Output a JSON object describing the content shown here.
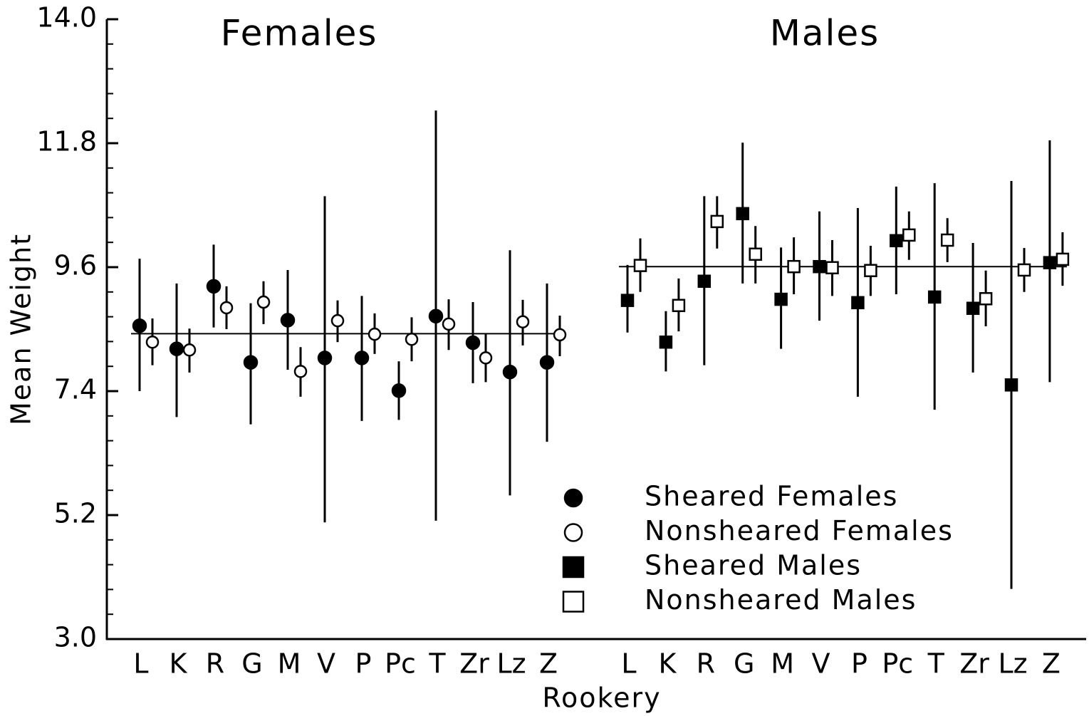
{
  "chart_data": {
    "type": "errorbar",
    "group_labels": [
      "Females",
      "Males"
    ],
    "xlabel": "Rookery",
    "ylabel": "Mean Weight",
    "categories": [
      "L",
      "K",
      "R",
      "G",
      "M",
      "V",
      "P",
      "Pc",
      "T",
      "Zr",
      "Lz",
      "Z",
      "L",
      "K",
      "R",
      "G",
      "M",
      "V",
      "P",
      "Pc",
      "T",
      "Zr",
      "Lz",
      "Z"
    ],
    "ylim": [
      3.0,
      14.0
    ],
    "yticks": [
      {
        "value": 3.0,
        "label": "3.0"
      },
      {
        "value": 5.2,
        "label": "5.2"
      },
      {
        "value": 7.4,
        "label": "7.4"
      },
      {
        "value": 9.6,
        "label": "9.6"
      },
      {
        "value": 11.8,
        "label": "11.8"
      },
      {
        "value": 14.0,
        "label": "14.0"
      }
    ],
    "yminor_ticks": [
      3.44,
      3.88,
      4.32,
      4.76,
      5.64,
      6.08,
      6.52,
      6.96,
      7.84,
      8.28,
      8.72,
      9.16,
      10.04,
      10.48,
      10.92,
      11.36,
      12.24,
      12.68,
      13.12,
      13.56
    ],
    "mean_lines": [
      8.42,
      9.61
    ],
    "series": [
      {
        "name": "Sheared Females",
        "marker": "circle",
        "filled": true,
        "color": "#000000",
        "values": [
          8.56,
          8.15,
          9.26,
          7.91,
          8.66,
          7.99,
          7.99,
          7.41,
          8.73,
          8.26,
          7.74,
          7.91,
          null,
          null,
          null,
          null,
          null,
          null,
          null,
          null,
          null,
          null,
          null,
          null
        ],
        "lower": [
          7.4,
          6.94,
          8.53,
          6.81,
          7.78,
          5.07,
          6.87,
          6.89,
          5.1,
          7.54,
          5.55,
          6.5,
          null,
          null,
          null,
          null,
          null,
          null,
          null,
          null,
          null,
          null,
          null,
          null
        ],
        "upper": [
          9.75,
          9.31,
          10.0,
          8.96,
          9.55,
          10.86,
          9.09,
          7.93,
          12.38,
          8.98,
          9.9,
          9.31,
          null,
          null,
          null,
          null,
          null,
          null,
          null,
          null,
          null,
          null,
          null,
          null
        ]
      },
      {
        "name": "Nonsheared Females",
        "marker": "circle",
        "filled": false,
        "color": "#000000",
        "values": [
          8.27,
          8.13,
          8.88,
          8.98,
          7.75,
          8.65,
          8.41,
          8.32,
          8.59,
          7.99,
          8.63,
          8.4,
          null,
          null,
          null,
          null,
          null,
          null,
          null,
          null,
          null,
          null,
          null,
          null
        ],
        "lower": [
          7.86,
          7.73,
          8.5,
          8.59,
          7.3,
          8.27,
          8.06,
          7.93,
          8.13,
          7.56,
          8.21,
          8.02,
          null,
          null,
          null,
          null,
          null,
          null,
          null,
          null,
          null,
          null,
          null,
          null
        ],
        "upper": [
          8.69,
          8.51,
          9.26,
          9.35,
          8.18,
          9.01,
          8.78,
          8.71,
          9.03,
          8.42,
          9.02,
          8.74,
          null,
          null,
          null,
          null,
          null,
          null,
          null,
          null,
          null,
          null,
          null,
          null
        ]
      },
      {
        "name": "Sheared Males",
        "marker": "square",
        "filled": true,
        "color": "#000000",
        "values": [
          null,
          null,
          null,
          null,
          null,
          null,
          null,
          null,
          null,
          null,
          null,
          null,
          9.01,
          8.27,
          9.35,
          10.55,
          9.03,
          9.61,
          8.97,
          10.07,
          9.07,
          8.87,
          7.51,
          9.68
        ],
        "lower": [
          null,
          null,
          null,
          null,
          null,
          null,
          null,
          null,
          null,
          null,
          null,
          null,
          8.44,
          7.75,
          7.86,
          9.31,
          8.15,
          8.65,
          7.3,
          9.12,
          7.07,
          7.73,
          3.89,
          7.56
        ],
        "upper": [
          null,
          null,
          null,
          null,
          null,
          null,
          null,
          null,
          null,
          null,
          null,
          null,
          9.64,
          8.82,
          10.86,
          11.81,
          9.95,
          10.59,
          10.65,
          11.03,
          11.09,
          10.03,
          11.13,
          11.85
        ]
      },
      {
        "name": "Nonsheared Males",
        "marker": "square",
        "filled": false,
        "color": "#000000",
        "values": [
          null,
          null,
          null,
          null,
          null,
          null,
          null,
          null,
          null,
          null,
          null,
          null,
          9.63,
          8.92,
          10.41,
          9.83,
          9.61,
          9.59,
          9.54,
          10.17,
          10.08,
          9.04,
          9.55,
          9.74
        ],
        "lower": [
          null,
          null,
          null,
          null,
          null,
          null,
          null,
          null,
          null,
          null,
          null,
          null,
          9.16,
          8.46,
          9.93,
          9.31,
          9.12,
          9.09,
          9.09,
          9.73,
          9.69,
          8.55,
          9.16,
          9.27
        ],
        "upper": [
          null,
          null,
          null,
          null,
          null,
          null,
          null,
          null,
          null,
          null,
          null,
          null,
          10.11,
          9.4,
          10.86,
          10.33,
          10.13,
          10.08,
          9.98,
          10.59,
          10.47,
          9.54,
          9.94,
          10.22
        ]
      }
    ]
  }
}
